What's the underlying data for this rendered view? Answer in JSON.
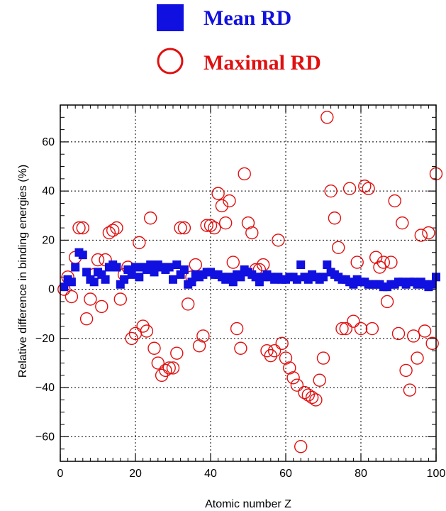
{
  "chart_data": {
    "type": "scatter",
    "title": "",
    "xlabel": "Atomic number Z",
    "ylabel": "Relative difference in binding energies (%)",
    "xlim": [
      0,
      100
    ],
    "ylim": [
      -70,
      75
    ],
    "xticks": [
      0,
      20,
      40,
      60,
      80,
      100
    ],
    "yticks": [
      -60,
      -40,
      -20,
      0,
      20,
      40,
      60
    ],
    "xtick_labels": [
      "0",
      "20",
      "40",
      "60",
      "80",
      "100"
    ],
    "ytick_labels": [
      "−60",
      "−40",
      "−20",
      "0",
      "20",
      "40",
      "60"
    ],
    "grid": true,
    "legend_placement": "top-center",
    "series": [
      {
        "name": "Mean RD",
        "marker": "filled-square",
        "color": "#1010e0",
        "points": [
          [
            1,
            1
          ],
          [
            2,
            4
          ],
          [
            3,
            3
          ],
          [
            4,
            9
          ],
          [
            5,
            15
          ],
          [
            6,
            14
          ],
          [
            7,
            7
          ],
          [
            8,
            4
          ],
          [
            9,
            3
          ],
          [
            10,
            7
          ],
          [
            11,
            6
          ],
          [
            12,
            4
          ],
          [
            13,
            9
          ],
          [
            14,
            10
          ],
          [
            15,
            9
          ],
          [
            16,
            2
          ],
          [
            17,
            4
          ],
          [
            18,
            8
          ],
          [
            19,
            6
          ],
          [
            20,
            9
          ],
          [
            21,
            5
          ],
          [
            22,
            9
          ],
          [
            23,
            8
          ],
          [
            24,
            10
          ],
          [
            25,
            7
          ],
          [
            26,
            10
          ],
          [
            27,
            9
          ],
          [
            28,
            8
          ],
          [
            29,
            9
          ],
          [
            30,
            4
          ],
          [
            31,
            10
          ],
          [
            32,
            6
          ],
          [
            33,
            8
          ],
          [
            34,
            2
          ],
          [
            35,
            3
          ],
          [
            36,
            6
          ],
          [
            37,
            5
          ],
          [
            38,
            6
          ],
          [
            39,
            7
          ],
          [
            40,
            7
          ],
          [
            41,
            6
          ],
          [
            42,
            6
          ],
          [
            43,
            5
          ],
          [
            44,
            4
          ],
          [
            45,
            5
          ],
          [
            46,
            3
          ],
          [
            47,
            6
          ],
          [
            48,
            5
          ],
          [
            49,
            8
          ],
          [
            50,
            7
          ],
          [
            51,
            6
          ],
          [
            52,
            5
          ],
          [
            53,
            3
          ],
          [
            54,
            5
          ],
          [
            55,
            6
          ],
          [
            56,
            5
          ],
          [
            57,
            4
          ],
          [
            58,
            5
          ],
          [
            59,
            4
          ],
          [
            60,
            4
          ],
          [
            61,
            5
          ],
          [
            62,
            5
          ],
          [
            63,
            4
          ],
          [
            64,
            10
          ],
          [
            65,
            5
          ],
          [
            66,
            4
          ],
          [
            67,
            6
          ],
          [
            68,
            5
          ],
          [
            69,
            4
          ],
          [
            70,
            5
          ],
          [
            71,
            10
          ],
          [
            72,
            7
          ],
          [
            73,
            6
          ],
          [
            74,
            5
          ],
          [
            75,
            4
          ],
          [
            76,
            4
          ],
          [
            77,
            3
          ],
          [
            78,
            2
          ],
          [
            79,
            4
          ],
          [
            80,
            3
          ],
          [
            81,
            3
          ],
          [
            82,
            2
          ],
          [
            83,
            2
          ],
          [
            84,
            2
          ],
          [
            85,
            2
          ],
          [
            86,
            1
          ],
          [
            87,
            1
          ],
          [
            88,
            2
          ],
          [
            89,
            2
          ],
          [
            90,
            3
          ],
          [
            91,
            3
          ],
          [
            92,
            2
          ],
          [
            93,
            3
          ],
          [
            94,
            3
          ],
          [
            95,
            2
          ],
          [
            96,
            3
          ],
          [
            97,
            2
          ],
          [
            98,
            1
          ],
          [
            99,
            2
          ],
          [
            100,
            5
          ]
        ]
      },
      {
        "name": "Maximal RD",
        "marker": "open-circle",
        "color": "#e01010",
        "points": [
          [
            1,
            0
          ],
          [
            2,
            5
          ],
          [
            3,
            -3
          ],
          [
            4,
            13
          ],
          [
            5,
            25
          ],
          [
            6,
            25
          ],
          [
            7,
            -12
          ],
          [
            8,
            -4
          ],
          [
            9,
            6
          ],
          [
            10,
            12
          ],
          [
            11,
            -7
          ],
          [
            12,
            12
          ],
          [
            13,
            23
          ],
          [
            14,
            24
          ],
          [
            15,
            25
          ],
          [
            16,
            -4
          ],
          [
            17,
            6
          ],
          [
            18,
            9
          ],
          [
            19,
            -20
          ],
          [
            20,
            -18
          ],
          [
            21,
            19
          ],
          [
            22,
            -15
          ],
          [
            23,
            -17
          ],
          [
            24,
            29
          ],
          [
            25,
            -24
          ],
          [
            26,
            -30
          ],
          [
            27,
            -35
          ],
          [
            28,
            -33
          ],
          [
            29,
            -32
          ],
          [
            30,
            -32
          ],
          [
            31,
            -26
          ],
          [
            32,
            25
          ],
          [
            33,
            25
          ],
          [
            34,
            -6
          ],
          [
            35,
            5
          ],
          [
            36,
            10
          ],
          [
            37,
            -23
          ],
          [
            38,
            -19
          ],
          [
            39,
            26
          ],
          [
            40,
            26
          ],
          [
            41,
            25
          ],
          [
            42,
            39
          ],
          [
            43,
            34
          ],
          [
            44,
            27
          ],
          [
            45,
            36
          ],
          [
            46,
            11
          ],
          [
            47,
            -16
          ],
          [
            48,
            -24
          ],
          [
            49,
            47
          ],
          [
            50,
            27
          ],
          [
            51,
            23
          ],
          [
            52,
            8
          ],
          [
            53,
            8
          ],
          [
            54,
            10
          ],
          [
            55,
            -25
          ],
          [
            56,
            -27
          ],
          [
            57,
            -25
          ],
          [
            58,
            20
          ],
          [
            59,
            -22
          ],
          [
            60,
            -28
          ],
          [
            61,
            -32
          ],
          [
            62,
            -36
          ],
          [
            63,
            -39
          ],
          [
            64,
            -64
          ],
          [
            65,
            -42
          ],
          [
            66,
            -43
          ],
          [
            67,
            -44
          ],
          [
            68,
            -45
          ],
          [
            69,
            -37
          ],
          [
            70,
            -28
          ],
          [
            71,
            70
          ],
          [
            72,
            40
          ],
          [
            73,
            29
          ],
          [
            74,
            17
          ],
          [
            75,
            -16
          ],
          [
            76,
            -16
          ],
          [
            77,
            41
          ],
          [
            78,
            -13
          ],
          [
            79,
            11
          ],
          [
            80,
            -16
          ],
          [
            81,
            42
          ],
          [
            82,
            41
          ],
          [
            83,
            -16
          ],
          [
            84,
            13
          ],
          [
            85,
            9
          ],
          [
            86,
            11
          ],
          [
            87,
            -5
          ],
          [
            88,
            11
          ],
          [
            89,
            36
          ],
          [
            90,
            -18
          ],
          [
            91,
            27
          ],
          [
            92,
            -33
          ],
          [
            93,
            -41
          ],
          [
            94,
            -19
          ],
          [
            95,
            -28
          ],
          [
            96,
            22
          ],
          [
            97,
            -17
          ],
          [
            98,
            23
          ],
          [
            99,
            -22
          ],
          [
            100,
            47
          ]
        ]
      }
    ]
  },
  "legend": {
    "items": [
      {
        "label": "Mean RD",
        "color": "#1010e0",
        "marker": "filled-square"
      },
      {
        "label": "Maximal RD",
        "color": "#e01010",
        "marker": "open-circle"
      }
    ]
  }
}
